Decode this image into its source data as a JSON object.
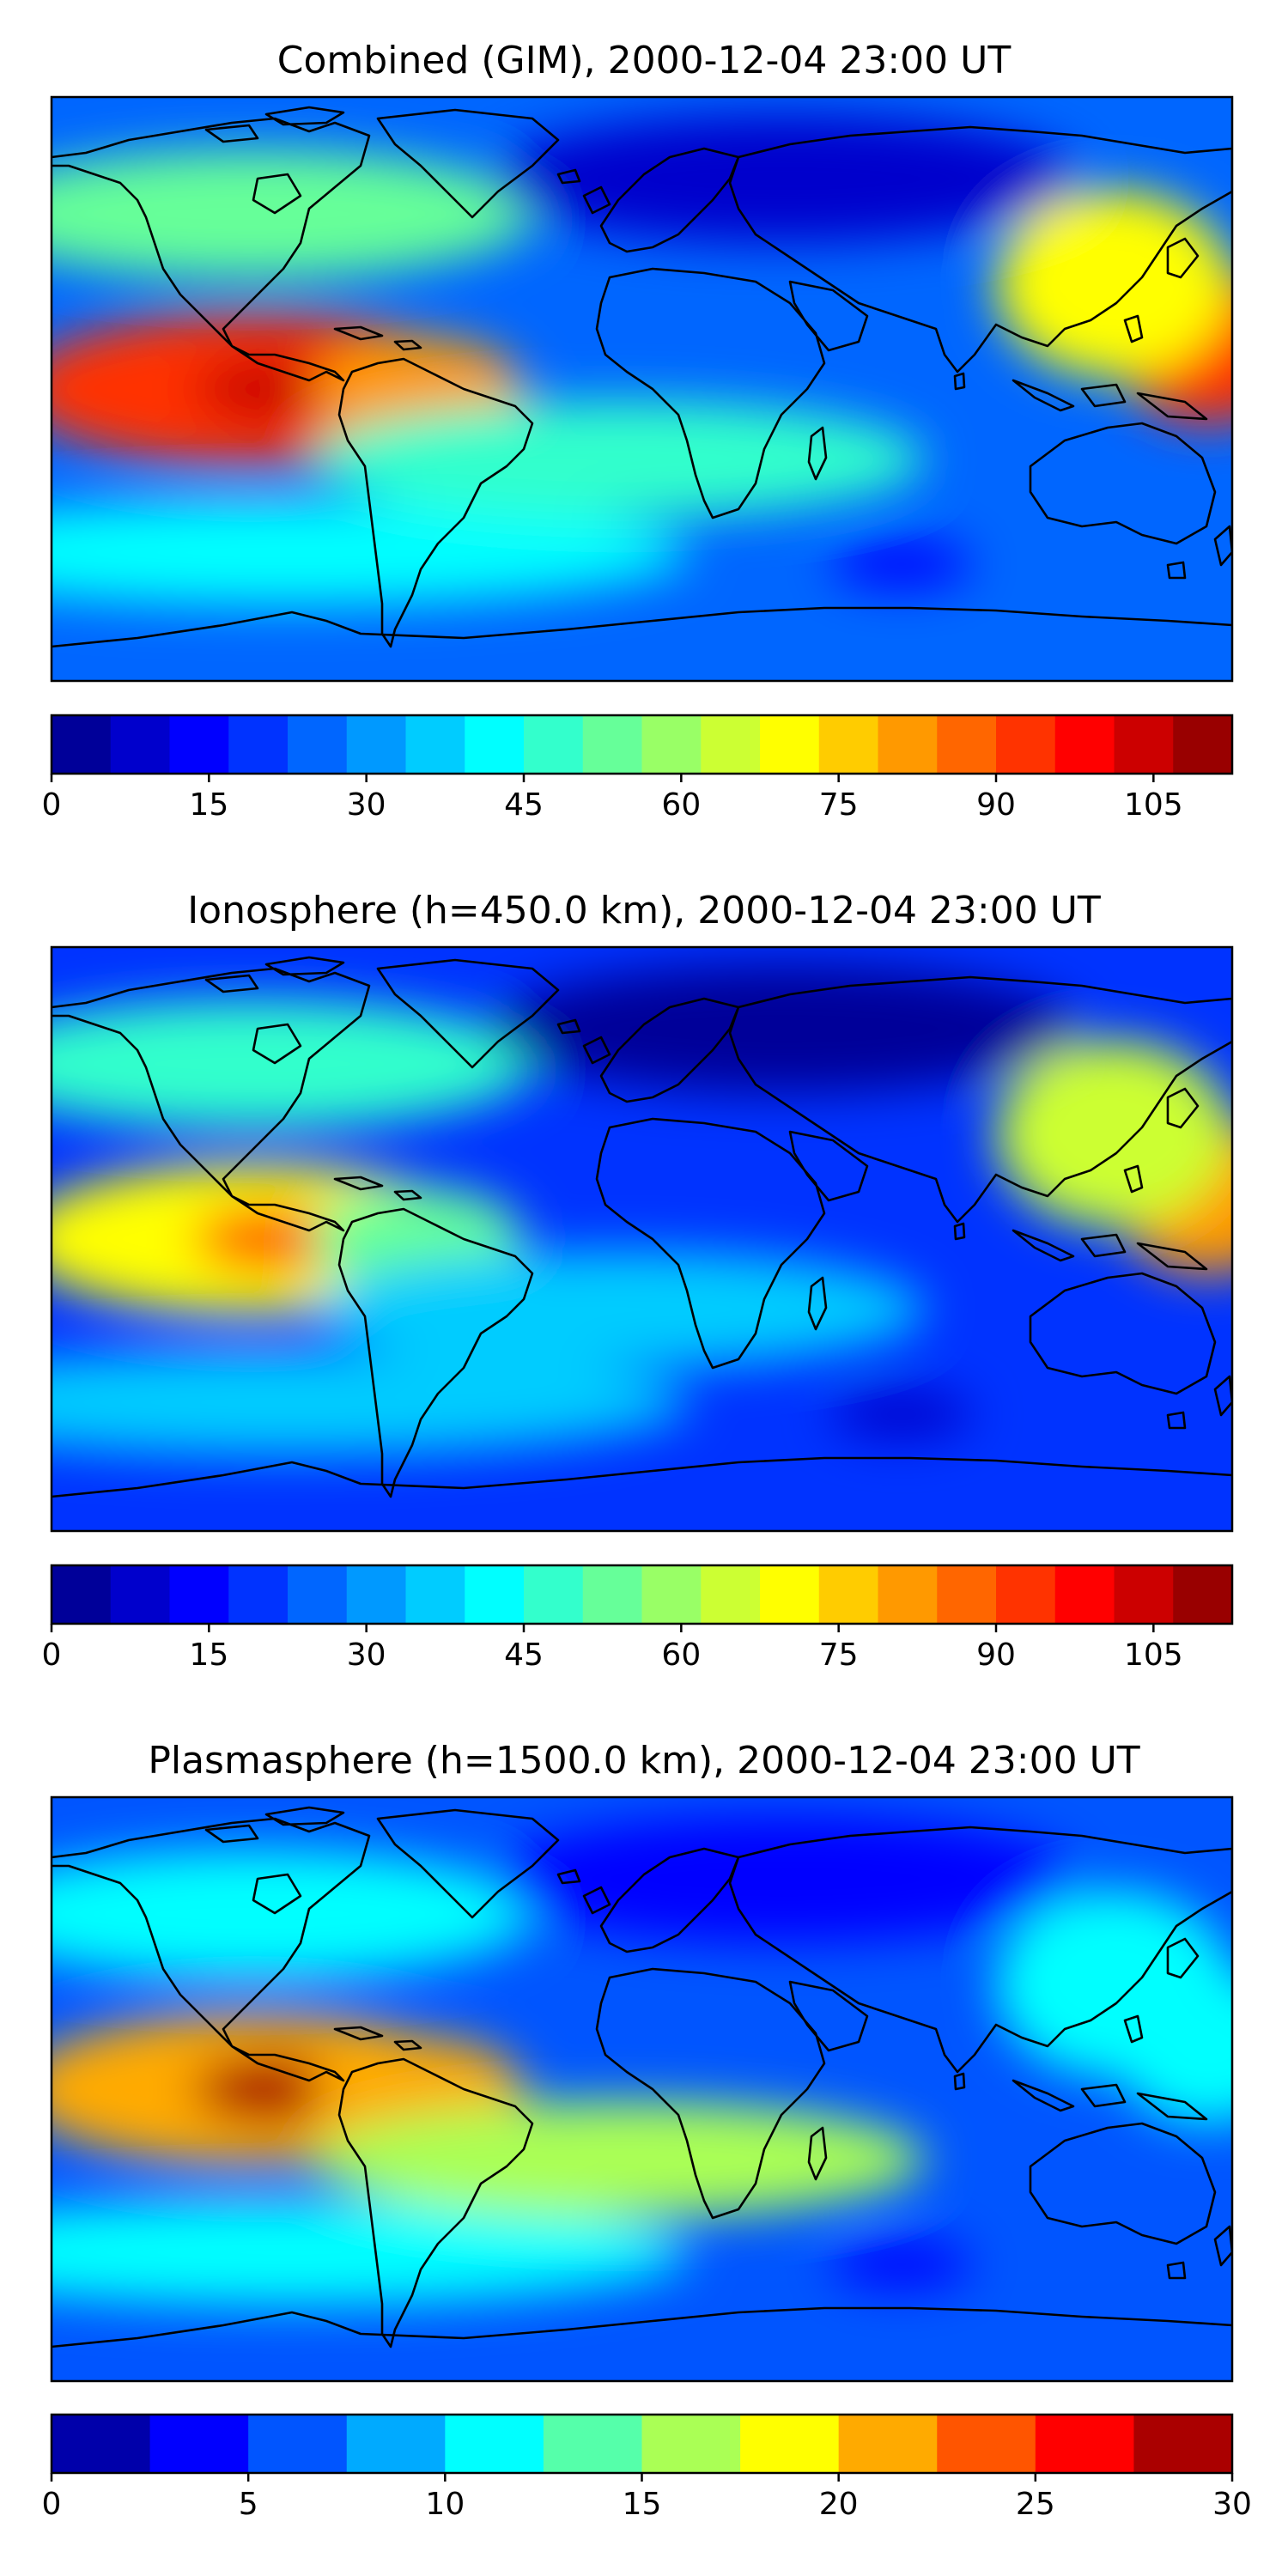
{
  "chart_data": [
    {
      "type": "heatmap",
      "title": "Combined (GIM), 2000-12-04 23:00 UT",
      "xlabel": "",
      "ylabel": "",
      "colorbar": {
        "min": 0,
        "max": 112.5,
        "step": 5.625,
        "ticks": [
          0,
          15,
          30,
          45,
          60,
          75,
          90,
          105
        ],
        "tick_labels": [
          "0",
          "15",
          "30",
          "45",
          "60",
          "75",
          "90",
          "105"
        ]
      },
      "regions": [
        {
          "name": "background",
          "value": 24
        },
        {
          "name": "north-pacific-band",
          "value": 52
        },
        {
          "name": "east-pacific-anomaly",
          "value": 90
        },
        {
          "name": "east-pacific-core",
          "value": 106
        },
        {
          "name": "west-pacific-anomaly",
          "value": 95
        },
        {
          "name": "asia-pacific-anomaly",
          "value": 70
        },
        {
          "name": "south-america-anomaly",
          "value": 82
        },
        {
          "name": "south-pacific-band",
          "value": 42
        },
        {
          "name": "atlantic-arc",
          "value": 45
        },
        {
          "name": "north-polar-low",
          "value": 6
        },
        {
          "name": "south-indian-ocean-low",
          "value": 12
        }
      ]
    },
    {
      "type": "heatmap",
      "title": "Ionosphere  (h=450.0 km), 2000-12-04 23:00 UT",
      "xlabel": "",
      "ylabel": "",
      "colorbar": {
        "min": 0,
        "max": 112.5,
        "step": 5.625,
        "ticks": [
          0,
          15,
          30,
          45,
          60,
          75,
          90,
          105
        ],
        "tick_labels": [
          "0",
          "15",
          "30",
          "45",
          "60",
          "75",
          "90",
          "105"
        ]
      },
      "regions": [
        {
          "name": "background",
          "value": 22
        },
        {
          "name": "north-pacific-band",
          "value": 48
        },
        {
          "name": "east-pacific-anomaly",
          "value": 72
        },
        {
          "name": "east-pacific-core",
          "value": 85
        },
        {
          "name": "west-pacific-anomaly",
          "value": 84
        },
        {
          "name": "asia-pacific-anomaly",
          "value": 62
        },
        {
          "name": "south-america-anomaly",
          "value": 55
        },
        {
          "name": "south-pacific-band",
          "value": 38
        },
        {
          "name": "atlantic-arc",
          "value": 36
        },
        {
          "name": "north-polar-low",
          "value": 4
        },
        {
          "name": "south-indian-ocean-low",
          "value": 10
        }
      ]
    },
    {
      "type": "heatmap",
      "title": "Plasmasphere (h=1500.0 km), 2000-12-04 23:00 UT",
      "xlabel": "",
      "ylabel": "",
      "colorbar": {
        "min": 0,
        "max": 30,
        "step": 2.5,
        "ticks": [
          0,
          5,
          10,
          15,
          20,
          25,
          30
        ],
        "tick_labels": [
          "0",
          "5",
          "10",
          "15",
          "20",
          "25",
          "30"
        ]
      },
      "regions": [
        {
          "name": "background",
          "value": 6
        },
        {
          "name": "north-pacific-band",
          "value": 11
        },
        {
          "name": "east-pacific-anomaly",
          "value": 20
        },
        {
          "name": "east-pacific-core",
          "value": 28
        },
        {
          "name": "west-pacific-anomaly",
          "value": 10
        },
        {
          "name": "asia-pacific-anomaly",
          "value": 11
        },
        {
          "name": "south-america-anomaly",
          "value": 21
        },
        {
          "name": "south-pacific-band",
          "value": 12
        },
        {
          "name": "atlantic-arc",
          "value": 15
        },
        {
          "name": "north-polar-low",
          "value": 3
        },
        {
          "name": "south-indian-ocean-low",
          "value": 4
        }
      ]
    }
  ]
}
